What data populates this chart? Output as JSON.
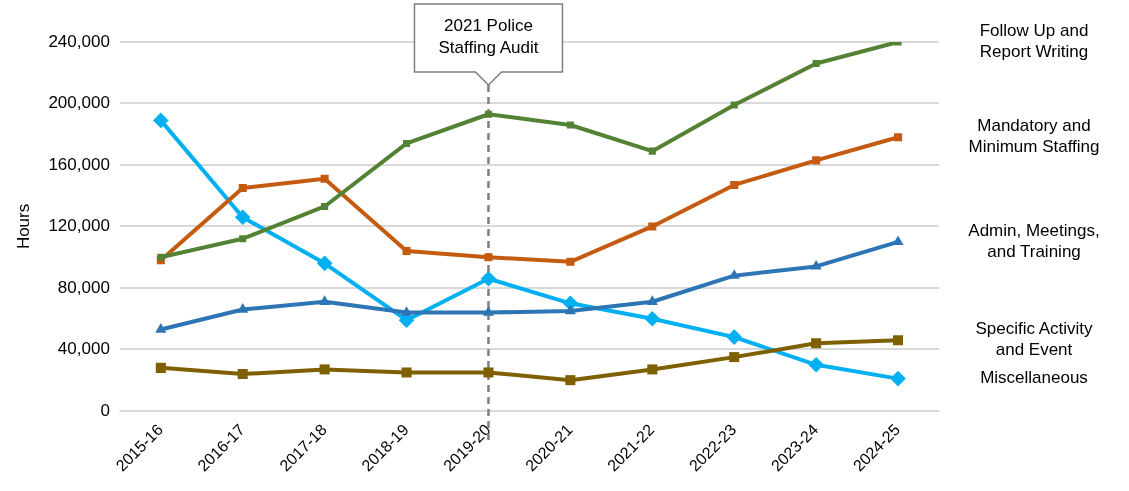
{
  "chart_data": {
    "type": "line",
    "ylabel": "Hours",
    "categories": [
      "2015-16",
      "2016-17",
      "2017-18",
      "2018-19",
      "2019-20",
      "2020-21",
      "2021-22",
      "2022-23",
      "2023-24",
      "2024-25"
    ],
    "series": [
      {
        "name": "Follow Up and Report Writing",
        "color": "#548235",
        "marker": "square",
        "values": [
          100000,
          112000,
          133000,
          174000,
          193000,
          186000,
          169000,
          199000,
          226000,
          240000
        ]
      },
      {
        "name": "Mandatory and Minimum Staffing",
        "color": "#c55a11",
        "marker": "square",
        "values": [
          98000,
          145000,
          151000,
          104000,
          100000,
          97000,
          120000,
          147000,
          163000,
          178000
        ]
      },
      {
        "name": "Admin, Meetings, and Training",
        "color": "#2e75b6",
        "marker": "triangle",
        "values": [
          53000,
          66000,
          71000,
          64000,
          64000,
          65000,
          71000,
          88000,
          94000,
          110000
        ]
      },
      {
        "name": "Specific Activity and Event",
        "color": "#7f6000",
        "marker": "square",
        "values": [
          28000,
          24000,
          27000,
          25000,
          25000,
          20000,
          27000,
          35000,
          44000,
          46000
        ]
      },
      {
        "name": "Miscellaneous",
        "color": "#00b0f0",
        "marker": "diamond",
        "values": [
          189000,
          126000,
          96000,
          59000,
          86000,
          70000,
          60000,
          48000,
          30000,
          21000
        ]
      }
    ],
    "ylim": [
      0,
      240000
    ],
    "yticks": [
      {
        "value": 0,
        "label": "0"
      },
      {
        "value": 40000,
        "label": "40,000"
      },
      {
        "value": 80000,
        "label": "80,000"
      },
      {
        "value": 120000,
        "label": "120,000"
      },
      {
        "value": 160000,
        "label": "160,000"
      },
      {
        "value": 200000,
        "label": "200,000"
      },
      {
        "value": 240000,
        "label": "240,000"
      }
    ],
    "grid": "y",
    "legend": false,
    "line_style": "solid",
    "ref_lines": [
      {
        "axis": "x",
        "value": "2019-20",
        "label": "2021 Police Staffing Audit",
        "color": "#808080",
        "line_style": "dashed"
      }
    ]
  }
}
